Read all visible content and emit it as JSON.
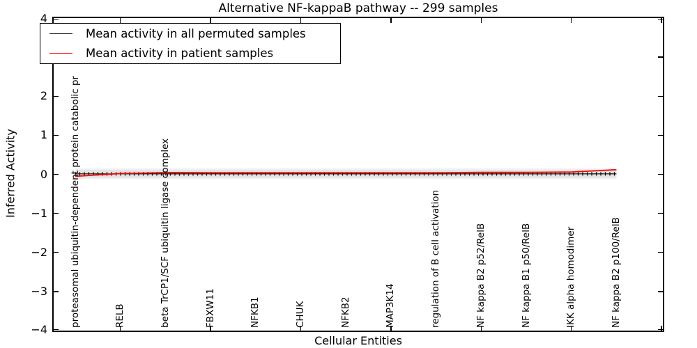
{
  "title": "Alternative NF-kappaB pathway -- 299 samples",
  "legend": {
    "items": [
      {
        "label": "Mean activity in all permuted samples",
        "color": "#000000"
      },
      {
        "label": "Mean activity in patient samples",
        "color": "#ff0000"
      }
    ]
  },
  "axes": {
    "y_label": "Inferred Activity",
    "x_label": "Cellular Entities",
    "y_ticks": [
      "4",
      "3",
      "2",
      "1",
      "0",
      "−1",
      "−2",
      "−3",
      "−4"
    ],
    "y_tick_values": [
      4,
      3,
      2,
      1,
      0,
      -1,
      -2,
      -3,
      -4
    ]
  },
  "chart_data": {
    "type": "line",
    "title": "Alternative NF-kappaB pathway -- 299 samples",
    "xlabel": "Cellular Entities",
    "ylabel": "Inferred Activity",
    "ylim": [
      -4,
      4
    ],
    "grid": false,
    "legend_position": "upper left",
    "categories": [
      "proteasomal ubiquitin-dependent protein catabolic pr",
      "RELB",
      "beta TrCP1/SCF ubiquitin ligase complex",
      "FBXW11",
      "NFKB1",
      "CHUK",
      "NFKB2",
      "MAP3K14",
      "regulation of B cell activation",
      "NF kappa B2 p52/RelB",
      "NF kappa B1 p50/RelB",
      "IKK alpha homodimer",
      "NF kappa B2 p100/RelB"
    ],
    "series": [
      {
        "name": "Mean activity in all permuted samples",
        "color": "#000000",
        "markers": true,
        "values": [
          0,
          0,
          0,
          0,
          0,
          0,
          0,
          0,
          0,
          0,
          0,
          0,
          0
        ]
      },
      {
        "name": "Mean activity in patient samples",
        "color": "#ff0000",
        "markers": false,
        "values": [
          -0.05,
          0.02,
          0.045,
          0.04,
          0.04,
          0.04,
          0.04,
          0.04,
          0.04,
          0.05,
          0.05,
          0.06,
          0.12
        ]
      }
    ],
    "band": {
      "name": "permuted samples spread",
      "low": -0.12,
      "high": 0.15,
      "color": "#e3e3e3"
    }
  }
}
